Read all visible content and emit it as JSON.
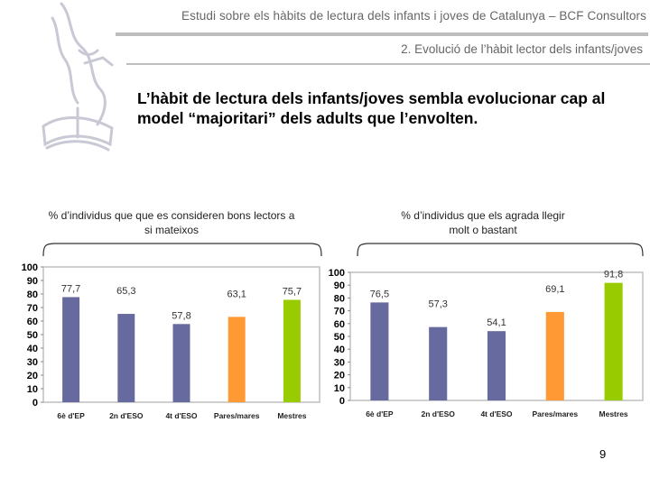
{
  "header": {
    "title": "Estudi sobre els hàbits de lectura dels infants i joves de Catalunya – BCF Consultors",
    "section": "2. Evolució de l’hàbit lector dels infants/joves"
  },
  "headline": {
    "line1": "L’hàbit de lectura dels infants/joves sembla evolucionar cap al",
    "line2": "model “majoritari” dels adults que l’envolten."
  },
  "charts": {
    "left_caption": {
      "line1": "% d’individus que que es consideren bons lectors a",
      "line2": "si mateixos"
    },
    "right_caption": {
      "line1": "% d’individus que els agrada llegir",
      "line2": "molt o bastant"
    }
  },
  "page_number": "9",
  "chart_data": [
    {
      "type": "bar",
      "categories": [
        "6è d'EP",
        "2n d'ESO",
        "4t d'ESO",
        "Pares/mares",
        "Mestres"
      ],
      "values": [
        77.7,
        65.3,
        57.8,
        63.1,
        75.7
      ],
      "value_labels": [
        "77,7",
        "65,3",
        "57,8",
        "63,1",
        "75,7"
      ],
      "colors": [
        "#676a9e",
        "#676a9e",
        "#676a9e",
        "#ff9933",
        "#99cc00"
      ],
      "ylim": [
        0,
        100
      ],
      "yticks": [
        0,
        10,
        20,
        30,
        40,
        50,
        60,
        70,
        80,
        90,
        100
      ],
      "grid": false
    },
    {
      "type": "bar",
      "categories": [
        "6è d'EP",
        "2n d'ESO",
        "4t d'ESO",
        "Pares/mares",
        "Mestres"
      ],
      "values": [
        76.5,
        57.3,
        54.1,
        69.1,
        91.8
      ],
      "value_labels": [
        "76,5",
        "57,3",
        "54,1",
        "69,1",
        "91,8"
      ],
      "colors": [
        "#676a9e",
        "#676a9e",
        "#676a9e",
        "#ff9933",
        "#99cc00"
      ],
      "ylim": [
        0,
        100
      ],
      "yticks": [
        0,
        10,
        20,
        30,
        40,
        50,
        60,
        70,
        80,
        90,
        100
      ],
      "grid": false
    }
  ]
}
